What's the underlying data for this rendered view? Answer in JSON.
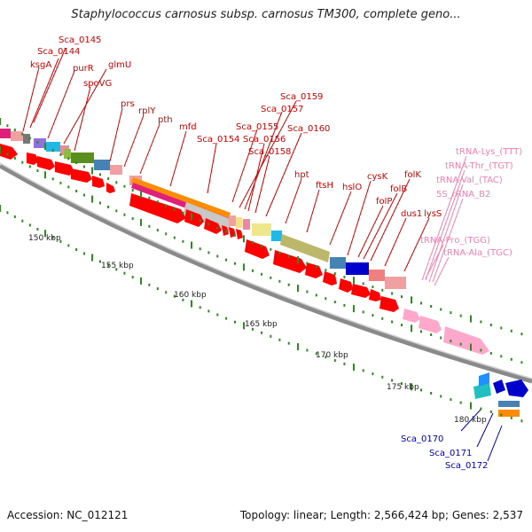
{
  "title": "Staphylococcus carnosus subsp. carnosus TM300, complete geno...",
  "footer": {
    "accession_text": "Accession: NC_012121",
    "stats_text": "Topology: linear; Length: 2,566,424 bp; Genes: 2,537"
  },
  "colors": {
    "cds": "#ff0000",
    "trna": "#ffa8cc",
    "backbone": "#999999",
    "tick": "#2e8b22",
    "red_label": "#cc0000",
    "pink_label": "#f080b0",
    "blue_label": "#0000aa"
  },
  "scale_labels": [
    "150 kbp",
    "155 kbp",
    "160 kbp",
    "165 kbp",
    "170 kbp",
    "175 kbp",
    "180 kbp"
  ],
  "gene_labels": [
    {
      "text": "Sca_0145",
      "color": "red"
    },
    {
      "text": "Sca_0144",
      "color": "red"
    },
    {
      "text": "ksgA",
      "color": "red"
    },
    {
      "text": "purR",
      "color": "red"
    },
    {
      "text": "glmU",
      "color": "red"
    },
    {
      "text": "spoVG",
      "color": "red"
    },
    {
      "text": "prs",
      "color": "red"
    },
    {
      "text": "rplY",
      "color": "red"
    },
    {
      "text": "pth",
      "color": "red"
    },
    {
      "text": "mfd",
      "color": "red"
    },
    {
      "text": "Sca_0159",
      "color": "red"
    },
    {
      "text": "Sca_0157",
      "color": "red"
    },
    {
      "text": "Sca_0155",
      "color": "red"
    },
    {
      "text": "Sca_0160",
      "color": "red"
    },
    {
      "text": "Sca_0154",
      "color": "red"
    },
    {
      "text": "Sca_0156",
      "color": "red"
    },
    {
      "text": "Sca_0158",
      "color": "red"
    },
    {
      "text": "hpt",
      "color": "red"
    },
    {
      "text": "ftsH",
      "color": "red"
    },
    {
      "text": "hslO",
      "color": "red"
    },
    {
      "text": "cysK",
      "color": "red"
    },
    {
      "text": "folK",
      "color": "red"
    },
    {
      "text": "folB",
      "color": "red"
    },
    {
      "text": "folP",
      "color": "red"
    },
    {
      "text": "dus1",
      "color": "red"
    },
    {
      "text": "lysS",
      "color": "red"
    },
    {
      "text": "tRNA-Lys_(TTT)",
      "color": "pink"
    },
    {
      "text": "tRNA-Thr_(TGT)",
      "color": "pink"
    },
    {
      "text": "tRNA-Val_(TAC)",
      "color": "pink"
    },
    {
      "text": "5S_rRNA_B2",
      "color": "pink"
    },
    {
      "text": "tRNA-Pro_(TGG)",
      "color": "pink"
    },
    {
      "text": "tRNA-Ala_(TGC)",
      "color": "pink"
    },
    {
      "text": "Sca_0170",
      "color": "blue"
    },
    {
      "text": "Sca_0171",
      "color": "blue"
    },
    {
      "text": "Sca_0172",
      "color": "blue"
    }
  ]
}
